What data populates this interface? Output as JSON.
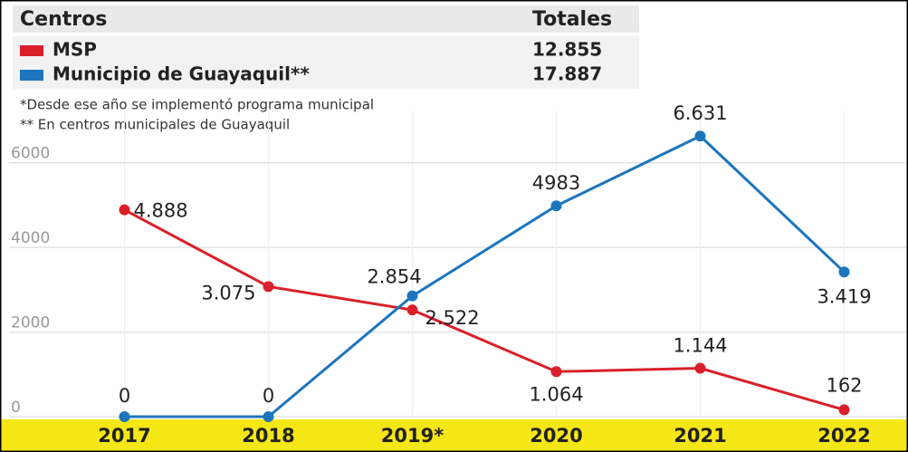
{
  "chart_data": {
    "type": "line",
    "header": "Centros",
    "totals_header": "Totales",
    "notes": [
      "*Desde ese año se implementó programa municipal",
      "** En centros municipales de Guayaquil"
    ],
    "categories": [
      "2017",
      "2018",
      "2019*",
      "2020",
      "2021",
      "2022"
    ],
    "series": [
      {
        "name": "MSP",
        "total": "12.855",
        "color": "#d9202a",
        "values": [
          4888,
          3075,
          2522,
          1064,
          1144,
          162
        ],
        "value_labels": [
          "4.888",
          "3.075",
          "2.522",
          "1.064",
          "1.144",
          "162"
        ]
      },
      {
        "name": "Municipio de Guayaquil**",
        "total": "17.887",
        "color": "#1c75bc",
        "values": [
          0,
          0,
          2854,
          4983,
          6631,
          3419
        ],
        "value_labels": [
          "0",
          "0",
          "2.854",
          "4983",
          "6.631",
          "3.419"
        ]
      }
    ],
    "ylim": [
      0,
      7000
    ],
    "yticks": [
      0,
      2000,
      4000,
      6000
    ],
    "grid": true
  }
}
